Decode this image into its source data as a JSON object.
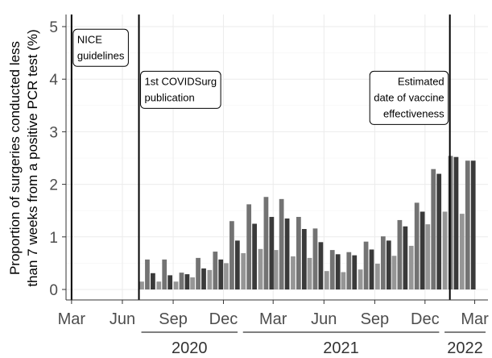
{
  "chart_data": {
    "type": "bar",
    "title": "",
    "ylabel": "Proportion of surgeries conducted less than 7 weeks from a positive PCR test (%)",
    "ylabel_lines": [
      "Proportion of surgeries conducted less",
      "than 7 weeks from a positive PCR test (%)"
    ],
    "ylim": [
      0,
      5
    ],
    "yticks": [
      0,
      1,
      2,
      3,
      4,
      5
    ],
    "xlim": [
      "2020-02-20",
      "2022-03-25"
    ],
    "x_ticks": [
      {
        "date": "2020-03-01",
        "label": "Mar"
      },
      {
        "date": "2020-06-01",
        "label": "Jun"
      },
      {
        "date": "2020-09-01",
        "label": "Sep"
      },
      {
        "date": "2020-12-01",
        "label": "Dec"
      },
      {
        "date": "2021-03-01",
        "label": "Mar"
      },
      {
        "date": "2021-06-01",
        "label": "Jun"
      },
      {
        "date": "2021-09-01",
        "label": "Sep"
      },
      {
        "date": "2021-12-01",
        "label": "Dec"
      },
      {
        "date": "2022-03-01",
        "label": "Mar"
      }
    ],
    "year_groups": [
      {
        "label": "2020",
        "start": "2020-07-01",
        "end": "2020-12-31"
      },
      {
        "label": "2021",
        "start": "2021-01-01",
        "end": "2021-12-31"
      },
      {
        "label": "2022",
        "start": "2022-01-01",
        "end": "2022-03-25"
      }
    ],
    "annotations": [
      {
        "date": "2020-03-01",
        "lines": [
          "NICE",
          "guidelines"
        ],
        "align": "left",
        "y": 4.95
      },
      {
        "date": "2020-07-01",
        "lines": [
          "1st COVIDSurg",
          "publication"
        ],
        "align": "left",
        "y": 4.15
      },
      {
        "date": "2022-01-15",
        "lines": [
          "Estimated",
          "date of vaccine",
          "effectiveness"
        ],
        "align": "right",
        "y": 4.15
      }
    ],
    "bar_colors": [
      "#969696",
      "#737373",
      "#3a3a3a"
    ],
    "bars": [
      {
        "month": "2020-07",
        "values": [
          0.15,
          0.57,
          0.31
        ]
      },
      {
        "month": "2020-08",
        "values": [
          0.15,
          0.57,
          0.27
        ]
      },
      {
        "month": "2020-09",
        "values": [
          0.15,
          0.32,
          0.29
        ]
      },
      {
        "month": "2020-10",
        "values": [
          0.23,
          0.6,
          0.4
        ]
      },
      {
        "month": "2020-11",
        "values": [
          0.37,
          0.72,
          0.57
        ]
      },
      {
        "month": "2020-12",
        "values": [
          0.5,
          1.3,
          0.93
        ]
      },
      {
        "month": "2021-01",
        "values": [
          0.69,
          1.62,
          1.25
        ]
      },
      {
        "month": "2021-02",
        "values": [
          0.77,
          1.76,
          1.38
        ]
      },
      {
        "month": "2021-03",
        "values": [
          0.75,
          1.72,
          1.35
        ]
      },
      {
        "month": "2021-04",
        "values": [
          0.63,
          1.38,
          1.15
        ]
      },
      {
        "month": "2021-05",
        "values": [
          0.6,
          1.16,
          0.9
        ]
      },
      {
        "month": "2021-06",
        "values": [
          0.35,
          0.75,
          0.67
        ]
      },
      {
        "month": "2021-07",
        "values": [
          0.33,
          0.71,
          0.65
        ]
      },
      {
        "month": "2021-08",
        "values": [
          0.38,
          0.91,
          0.76
        ]
      },
      {
        "month": "2021-09",
        "values": [
          0.49,
          1.01,
          0.93
        ]
      },
      {
        "month": "2021-10",
        "values": [
          0.64,
          1.32,
          1.2
        ]
      },
      {
        "month": "2021-11",
        "values": [
          0.83,
          1.65,
          1.48
        ]
      },
      {
        "month": "2021-12",
        "values": [
          1.24,
          2.29,
          2.2
        ]
      },
      {
        "month": "2022-01",
        "values": [
          1.48,
          2.54,
          2.52
        ]
      },
      {
        "month": "2022-02",
        "values": [
          1.44,
          2.45,
          2.45
        ]
      }
    ],
    "grid": true
  }
}
